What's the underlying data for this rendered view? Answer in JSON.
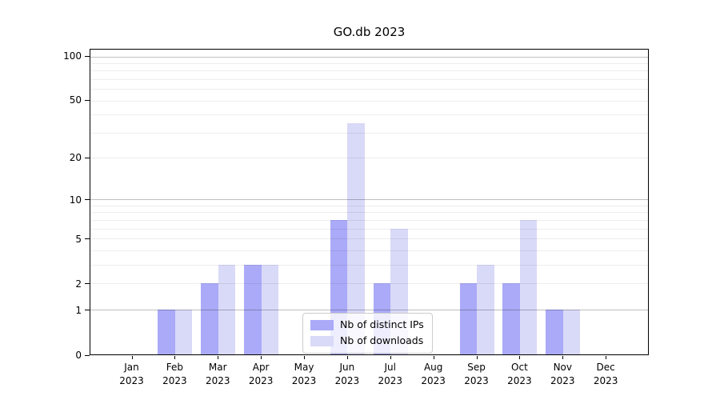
{
  "title": "GO.db 2023",
  "chart_data": {
    "type": "bar",
    "title": "GO.db 2023",
    "categories": [
      "Jan",
      "Feb",
      "Mar",
      "Apr",
      "May",
      "Jun",
      "Jul",
      "Aug",
      "Sep",
      "Oct",
      "Nov",
      "Dec"
    ],
    "category_year": "2023",
    "series": [
      {
        "name": "Nb of distinct IPs",
        "color": "#aaaaf8",
        "values": [
          0,
          1,
          2,
          3,
          0,
          7,
          2,
          0,
          2,
          2,
          1,
          0
        ]
      },
      {
        "name": "Nb of downloads",
        "color": "#d9d9f8",
        "values": [
          0,
          1,
          3,
          3,
          0,
          35,
          6,
          0,
          3,
          7,
          1,
          0
        ]
      }
    ],
    "y_axis": {
      "scale": "log1p",
      "ylim": [
        0,
        112
      ],
      "ticks": [
        0,
        1,
        2,
        5,
        10,
        20,
        50,
        100
      ],
      "major_gridlines": [
        1,
        10,
        100
      ],
      "minor_gridlines": [
        2,
        3,
        4,
        5,
        6,
        7,
        8,
        9,
        20,
        30,
        40,
        50,
        60,
        70,
        80,
        90
      ]
    },
    "xlabel": "",
    "ylabel": "",
    "grid": "on",
    "legend_position": "lower-center"
  },
  "colors": {
    "spine": "#000000",
    "major_grid": "#bfbfbf",
    "minor_grid": "#ededed",
    "legend_border": "#cccccc",
    "background": "#ffffff"
  }
}
